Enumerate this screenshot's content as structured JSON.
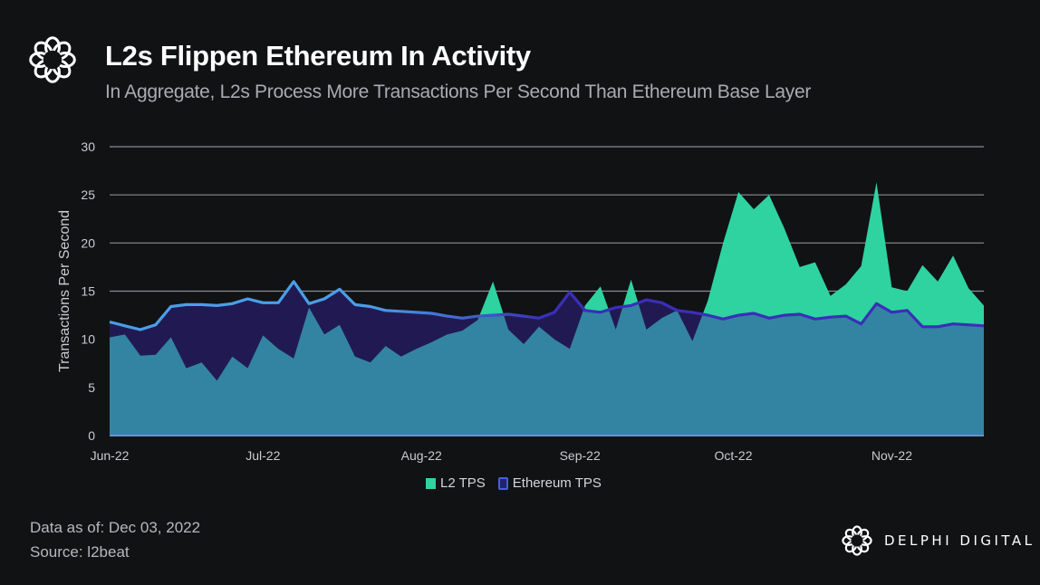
{
  "header": {
    "title": "L2s Flippen Ethereum In Activity",
    "subtitle": "In Aggregate, L2s Process More Transactions Per Second Than Ethereum Base Layer",
    "logo_icon": "delphi-knot-icon"
  },
  "footer": {
    "data_as_of": "Data as of: Dec 03, 2022",
    "source": "Source: l2beat",
    "brand": "DELPHI DIGITAL",
    "brand_icon": "delphi-knot-icon"
  },
  "colors": {
    "background": "#111214",
    "l2_fill": "#2ed3a0",
    "eth_fill": "#211a52",
    "overlap_fill": "#3384a2",
    "eth_line_start": "#4a9ee8",
    "eth_line_end": "#3a2fb8",
    "grid": "#8a8c90",
    "axis_text": "#c9cbcf"
  },
  "chart_data": {
    "type": "area",
    "title": "L2s Flippen Ethereum In Activity",
    "subtitle": "In Aggregate, L2s Process More Transactions Per Second Than Ethereum Base Layer",
    "xlabel": "",
    "ylabel": "Transactions Per Second",
    "ylim": [
      0,
      30
    ],
    "yticks": [
      0,
      5,
      10,
      15,
      20,
      25,
      30
    ],
    "xticks": [
      "Jun-22",
      "Jul-22",
      "Aug-22",
      "Sep-22",
      "Oct-22",
      "Nov-22"
    ],
    "x_range_days": [
      0,
      171
    ],
    "xtick_days": [
      0,
      30,
      61,
      92,
      122,
      153
    ],
    "grid": true,
    "legend_position": "bottom",
    "legend": [
      "L2 TPS",
      "Ethereum TPS"
    ],
    "x_days": [
      0,
      3,
      6,
      9,
      12,
      15,
      18,
      21,
      24,
      27,
      30,
      33,
      36,
      39,
      42,
      45,
      48,
      51,
      54,
      57,
      60,
      63,
      66,
      69,
      72,
      75,
      78,
      81,
      84,
      87,
      90,
      93,
      96,
      99,
      102,
      105,
      108,
      111,
      114,
      117,
      120,
      123,
      126,
      129,
      132,
      135,
      138,
      141,
      144,
      147,
      150,
      153,
      156,
      159,
      162,
      165,
      168,
      171
    ],
    "series": [
      {
        "name": "L2 TPS",
        "values": [
          10.2,
          10.5,
          8.3,
          8.4,
          10.2,
          7.0,
          7.6,
          5.7,
          8.2,
          7.0,
          10.4,
          9.0,
          8.0,
          13.3,
          10.5,
          11.5,
          8.2,
          7.6,
          9.3,
          8.2,
          9.0,
          9.7,
          10.5,
          10.9,
          12.0,
          16.0,
          11.0,
          9.5,
          11.3,
          10.0,
          9.0,
          13.5,
          15.5,
          11.0,
          16.2,
          11.0,
          12.2,
          13.0,
          9.8,
          14.0,
          20.0,
          25.3,
          23.5,
          25.0,
          21.5,
          17.5,
          18.0,
          14.5,
          15.7,
          17.6,
          26.3,
          15.4,
          15.0,
          17.7,
          16.0,
          18.7,
          15.3,
          13.5
        ]
      },
      {
        "name": "Ethereum TPS",
        "values": [
          11.8,
          11.4,
          11.0,
          11.5,
          13.4,
          13.6,
          13.6,
          13.5,
          13.7,
          14.2,
          13.8,
          13.8,
          16.0,
          13.7,
          14.2,
          15.2,
          13.6,
          13.4,
          13.0,
          12.9,
          12.8,
          12.7,
          12.4,
          12.2,
          12.4,
          12.5,
          12.6,
          12.4,
          12.2,
          12.8,
          14.9,
          13.0,
          12.8,
          13.3,
          13.5,
          14.1,
          13.8,
          13.0,
          12.8,
          12.5,
          12.1,
          12.5,
          12.7,
          12.2,
          12.5,
          12.6,
          12.1,
          12.3,
          12.4,
          11.6,
          13.7,
          12.8,
          13.0,
          11.3,
          11.3,
          11.6,
          11.5,
          11.4
        ]
      }
    ]
  }
}
